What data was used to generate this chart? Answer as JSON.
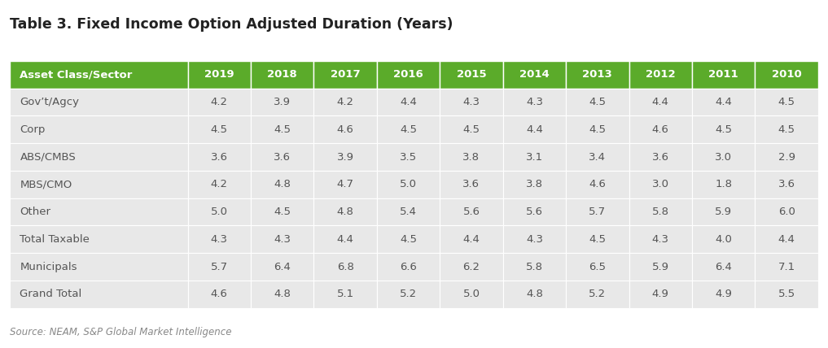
{
  "title": "Table 3. Fixed Income Option Adjusted Duration (Years)",
  "source": "Source: NEAM, S&P Global Market Intelligence",
  "header_row": [
    "Asset Class/Sector",
    "2019",
    "2018",
    "2017",
    "2016",
    "2015",
    "2014",
    "2013",
    "2012",
    "2011",
    "2010"
  ],
  "rows": [
    [
      "Gov’t/Agcy",
      "4.2",
      "3.9",
      "4.2",
      "4.4",
      "4.3",
      "4.3",
      "4.5",
      "4.4",
      "4.4",
      "4.5"
    ],
    [
      "Corp",
      "4.5",
      "4.5",
      "4.6",
      "4.5",
      "4.5",
      "4.4",
      "4.5",
      "4.6",
      "4.5",
      "4.5"
    ],
    [
      "ABS/CMBS",
      "3.6",
      "3.6",
      "3.9",
      "3.5",
      "3.8",
      "3.1",
      "3.4",
      "3.6",
      "3.0",
      "2.9"
    ],
    [
      "MBS/CMO",
      "4.2",
      "4.8",
      "4.7",
      "5.0",
      "3.6",
      "3.8",
      "4.6",
      "3.0",
      "1.8",
      "3.6"
    ],
    [
      "Other",
      "5.0",
      "4.5",
      "4.8",
      "5.4",
      "5.6",
      "5.6",
      "5.7",
      "5.8",
      "5.9",
      "6.0"
    ],
    [
      "Total Taxable",
      "4.3",
      "4.3",
      "4.4",
      "4.5",
      "4.4",
      "4.3",
      "4.5",
      "4.3",
      "4.0",
      "4.4"
    ],
    [
      "Municipals",
      "5.7",
      "6.4",
      "6.8",
      "6.6",
      "6.2",
      "5.8",
      "6.5",
      "5.9",
      "6.4",
      "7.1"
    ],
    [
      "Grand Total",
      "4.6",
      "4.8",
      "5.1",
      "5.2",
      "5.0",
      "4.8",
      "5.2",
      "4.9",
      "4.9",
      "5.5"
    ]
  ],
  "header_bg_color": "#5bab2a",
  "header_text_color": "#ffffff",
  "row_bg_color": "#e8e8e8",
  "row_line_color": "#ffffff",
  "title_color": "#222222",
  "source_color": "#888888",
  "cell_text_color": "#555555",
  "figure_bg": "#ffffff",
  "col_widths": [
    2.2,
    0.78,
    0.78,
    0.78,
    0.78,
    0.78,
    0.78,
    0.78,
    0.78,
    0.78,
    0.78
  ]
}
